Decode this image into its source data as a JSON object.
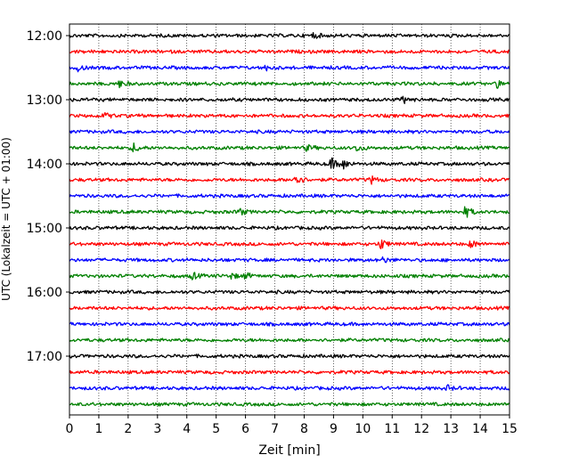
{
  "chart_data": {
    "type": "line",
    "title": "",
    "xlabel": "Zeit  [min]",
    "ylabel": "UTC (Lokalzeit = UTC + 01:00)",
    "xlim": [
      0,
      15
    ],
    "x_ticks": [
      0,
      1,
      2,
      3,
      4,
      5,
      6,
      7,
      8,
      9,
      10,
      11,
      12,
      13,
      14,
      15
    ],
    "x_tick_labels": [
      "0",
      "1",
      "2",
      "3",
      "4",
      "5",
      "6",
      "7",
      "8",
      "9",
      "10",
      "11",
      "12",
      "13",
      "14",
      "15"
    ],
    "y_tick_labels": [
      "12:00",
      "13:00",
      "14:00",
      "15:00",
      "16:00",
      "17:00"
    ],
    "y_tick_rows": [
      0,
      4,
      8,
      12,
      16,
      20
    ],
    "vertical_grid": true,
    "grid_style": "dotted",
    "trace_color_cycle": [
      "#000000",
      "#ff0000",
      "#0000ff",
      "#008000"
    ],
    "rows": [
      {
        "start": "12:00",
        "color": "#000000",
        "events": [
          {
            "t": 8.3,
            "amp": 0.5
          }
        ]
      },
      {
        "start": "12:15",
        "color": "#ff0000",
        "events": []
      },
      {
        "start": "12:30",
        "color": "#0000ff",
        "events": [
          {
            "t": 0.3,
            "amp": 0.5
          },
          {
            "t": 6.7,
            "amp": 0.4
          }
        ]
      },
      {
        "start": "12:45",
        "color": "#008000",
        "events": [
          {
            "t": 1.7,
            "amp": 0.6
          },
          {
            "t": 14.6,
            "amp": 0.7
          }
        ]
      },
      {
        "start": "13:00",
        "color": "#000000",
        "events": [
          {
            "t": 11.4,
            "amp": 0.6
          }
        ]
      },
      {
        "start": "13:15",
        "color": "#ff0000",
        "events": [
          {
            "t": 1.2,
            "amp": 0.5
          }
        ]
      },
      {
        "start": "13:30",
        "color": "#0000ff",
        "events": []
      },
      {
        "start": "13:45",
        "color": "#008000",
        "events": [
          {
            "t": 2.2,
            "amp": 0.8
          },
          {
            "t": 8.1,
            "amp": 0.5
          },
          {
            "t": 9.8,
            "amp": 0.6
          }
        ]
      },
      {
        "start": "14:00",
        "color": "#000000",
        "events": [
          {
            "t": 8.9,
            "amp": 1.1
          },
          {
            "t": 9.3,
            "amp": 1.0
          }
        ]
      },
      {
        "start": "14:15",
        "color": "#ff0000",
        "events": [
          {
            "t": 7.7,
            "amp": 1.3
          },
          {
            "t": 10.3,
            "amp": 0.6
          }
        ]
      },
      {
        "start": "14:30",
        "color": "#0000ff",
        "events": []
      },
      {
        "start": "14:45",
        "color": "#008000",
        "events": [
          {
            "t": 5.8,
            "amp": 0.6
          },
          {
            "t": 13.5,
            "amp": 1.0
          }
        ]
      },
      {
        "start": "15:00",
        "color": "#000000",
        "events": []
      },
      {
        "start": "15:15",
        "color": "#ff0000",
        "events": [
          {
            "t": 10.6,
            "amp": 1.0
          },
          {
            "t": 13.7,
            "amp": 0.7
          }
        ]
      },
      {
        "start": "15:30",
        "color": "#0000ff",
        "events": [
          {
            "t": 10.7,
            "amp": 0.5
          }
        ]
      },
      {
        "start": "15:45",
        "color": "#008000",
        "events": [
          {
            "t": 4.2,
            "amp": 0.6
          },
          {
            "t": 5.5,
            "amp": 0.5
          },
          {
            "t": 6.0,
            "amp": 0.5
          }
        ]
      },
      {
        "start": "16:00",
        "color": "#000000",
        "events": []
      },
      {
        "start": "16:15",
        "color": "#ff0000",
        "events": []
      },
      {
        "start": "16:30",
        "color": "#0000ff",
        "events": []
      },
      {
        "start": "16:45",
        "color": "#008000",
        "events": []
      },
      {
        "start": "17:00",
        "color": "#000000",
        "events": []
      },
      {
        "start": "17:15",
        "color": "#ff0000",
        "events": []
      },
      {
        "start": "17:30",
        "color": "#0000ff",
        "events": [
          {
            "t": 12.9,
            "amp": 0.4
          }
        ]
      },
      {
        "start": "17:45",
        "color": "#008000",
        "events": []
      }
    ]
  }
}
